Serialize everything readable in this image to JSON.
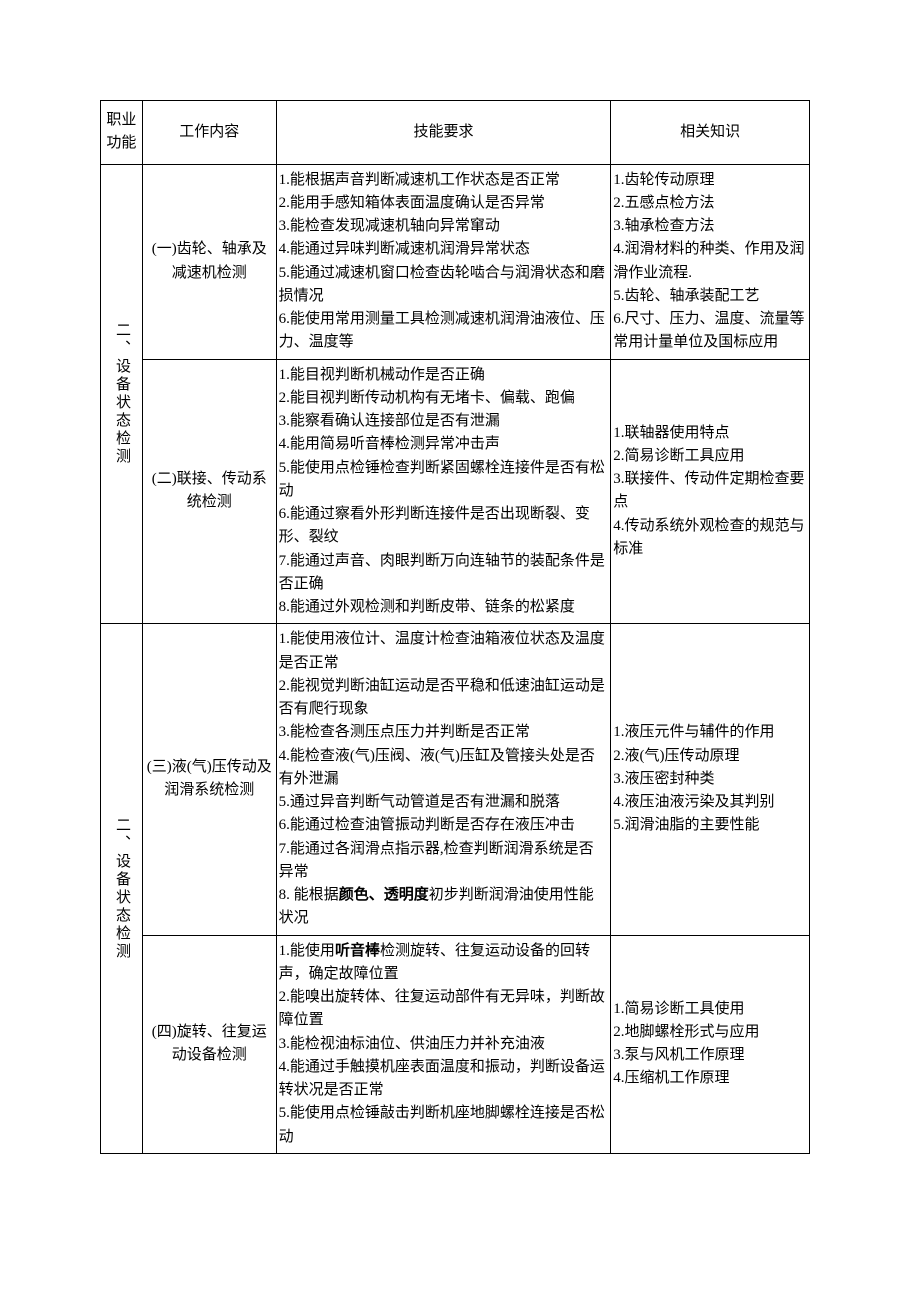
{
  "headers": {
    "col1": "职业功能",
    "col2": "工作内容",
    "col3": "技能要求",
    "col4": "相关知识"
  },
  "section1": {
    "function_label": "二、设备状态检测",
    "rows": [
      {
        "work": "(一)齿轮、轴承及减速机检测",
        "skills": [
          "1.能根据声音判断减速机工作状态是否正常",
          "2.能用手感知箱体表面温度确认是否异常",
          "3.能检查发现减速机轴向异常窜动",
          "4.能通过异味判断减速机润滑异常状态",
          "5.能通过减速机窗口检查齿轮啮合与润滑状态和磨损情况",
          "6.能使用常用测量工具检测减速机润滑油液位、压力、温度等"
        ],
        "knowledge": [
          "1.齿轮传动原理",
          "2.五感点检方法",
          "3.轴承检查方法",
          "4.润滑材料的种类、作用及润滑作业流程.",
          "5.齿轮、轴承装配工艺",
          "6.尺寸、压力、温度、流量等常用计量单位及国标应用"
        ]
      },
      {
        "work": "(二)联接、传动系统检测",
        "skills": [
          "1.能目视判断机械动作是否正确",
          "2.能目视判断传动机构有无堵卡、偏载、跑偏",
          "3.能察看确认连接部位是否有泄漏",
          "4.能用简易听音棒检测异常冲击声",
          "5.能使用点检锤检查判断紧固螺栓连接件是否有松动",
          "6.能通过察看外形判断连接件是否出现断裂、变形、裂纹",
          "7.能通过声音、肉眼判断万向连轴节的装配条件是否正确",
          "8.能通过外观检测和判断皮带、链条的松紧度"
        ],
        "knowledge": [
          "1.联轴器使用特点",
          "2.简易诊断工具应用",
          "3.联接件、传动件定期检查要点",
          "4.传动系统外观检查的规范与标准"
        ]
      }
    ]
  },
  "section2": {
    "function_label": "二、设备状态检测",
    "rows": [
      {
        "work": "(三)液(气)压传动及润滑系统检测",
        "skills_prefix": [
          "1.能使用液位计、温度计检查油箱液位状态及温度是否正常",
          "2.能视觉判断油缸运动是否平稳和低速油缸运动是否有爬行现象",
          "3.能检查各测压点压力并判断是否正常",
          "4.能检查液(气)压阀、液(气)压缸及管接头处是否有外泄漏",
          "5.通过异音判断气动管道是否有泄漏和脱落",
          "6.能通过检查油管振动判断是否存在液压冲击",
          "7.能通过各润滑点指示器,检查判断润滑系统是否异常"
        ],
        "skills_special_prefix": "8.  能根据",
        "skills_bold": "颜色、透明度",
        "skills_special_suffix": "初步判断润滑油使用性能状况",
        "knowledge": [
          "1.液压元件与辅件的作用",
          "2.液(气)压传动原理",
          "3.液压密封种类",
          "4.液压油液污染及其判别",
          "5.润滑油脂的主要性能"
        ]
      },
      {
        "work": "(四)旋转、往复运动设备检测",
        "skill1_prefix": "1.能使用",
        "skill1_bold": "听音棒",
        "skill1_suffix": "检测旋转、往复运动设备的回转声，确定故障位置",
        "skills_rest": [
          "2.能嗅出旋转体、往复运动部件有无异味，判断故障位置",
          "3.能检视油标油位、供油压力并补充油液",
          "4.能通过手触摸机座表面温度和振动，判断设备运转状况是否正常",
          "5.能使用点检锤敲击判断机座地脚螺栓连接是否松动"
        ],
        "knowledge": [
          "1.简易诊断工具使用",
          "2.地脚螺栓形式与应用",
          "3.泵与风机工作原理",
          "4.压缩机工作原理"
        ]
      }
    ]
  }
}
